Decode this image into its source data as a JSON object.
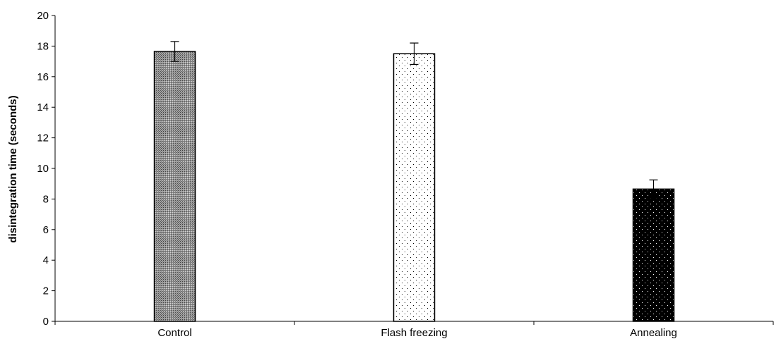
{
  "chart_data": {
    "type": "bar",
    "title": "",
    "xlabel": "",
    "ylabel": "disintegration time (seconds)",
    "categories": [
      "Control",
      "Flash freezing",
      "Annealing"
    ],
    "values": [
      17.65,
      17.5,
      8.65
    ],
    "error_bars": [
      0.65,
      0.7,
      0.6
    ],
    "ylim": [
      0,
      20
    ],
    "yticks": [
      0,
      2,
      4,
      6,
      8,
      10,
      12,
      14,
      16,
      18,
      20
    ],
    "grid": false,
    "legend": "none",
    "bar_fills": [
      "crosshatch-gray",
      "white-dotted",
      "black-dotted"
    ],
    "colors": {
      "axis": "#000000",
      "bar_outline": "#000000"
    }
  }
}
